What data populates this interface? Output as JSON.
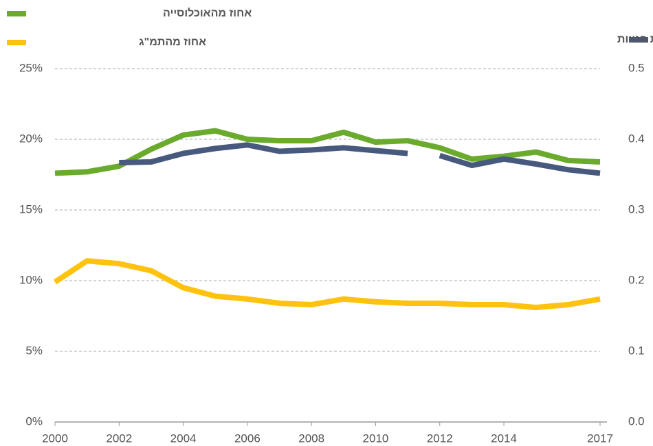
{
  "chart_data": {
    "type": "line",
    "x": [
      2000,
      2001,
      2002,
      2003,
      2004,
      2005,
      2006,
      2007,
      2008,
      2009,
      2010,
      2011,
      2012,
      2013,
      2014,
      2015,
      2016,
      2017
    ],
    "xlim": [
      2000,
      2017
    ],
    "xticks": [
      2000,
      2002,
      2004,
      2006,
      2008,
      2010,
      2012,
      2014,
      2017
    ],
    "ylim": [
      0,
      25
    ],
    "yticks": [
      {
        "value": 0,
        "label": "0%"
      },
      {
        "value": 5,
        "label": "5%"
      },
      {
        "value": 10,
        "label": "10%"
      },
      {
        "value": 15,
        "label": "15%"
      },
      {
        "value": 20,
        "label": "20%"
      },
      {
        "value": 25,
        "label": "25%"
      }
    ],
    "y2lim": [
      0,
      0.5
    ],
    "y2ticks": [
      {
        "value": 0,
        "label": "0.0"
      },
      0.1,
      0.2,
      0.3,
      0.4,
      0.5
    ],
    "grid": true,
    "series": [
      {
        "name": "אחוז מהאוכלוסייה",
        "color": "#6aab2e",
        "values": [
          17.6,
          17.7,
          18.1,
          19.3,
          20.3,
          20.6,
          20.0,
          19.9,
          19.9,
          20.5,
          19.8,
          19.9,
          19.4,
          18.6,
          18.8,
          19.1,
          18.5,
          18.4
        ]
      },
      {
        "name": "אחוז מהתמ\"ג",
        "color": "#ffc20e",
        "values": [
          9.9,
          11.4,
          11.2,
          10.7,
          9.5,
          8.9,
          8.7,
          8.4,
          8.3,
          8.7,
          8.5,
          8.4,
          8.4,
          8.3,
          8.3,
          8.1,
          8.3,
          8.7
        ]
      },
      {
        "name": "מדד ג'יני לאי שוויון בהכנסות  פנויות",
        "color": "#475a7d",
        "axis": "y2",
        "values": [
          null,
          null,
          0.367,
          0.368,
          0.38,
          0.387,
          0.392,
          0.383,
          0.385,
          0.388,
          0.384,
          0.38,
          null,
          null,
          null,
          null,
          null,
          null
        ]
      },
      {
        "color": "#475a7d",
        "axis": "y2",
        "values": [
          null,
          null,
          null,
          null,
          null,
          null,
          null,
          null,
          null,
          null,
          null,
          null,
          0.377,
          0.363,
          0.372,
          0.365,
          0.357,
          0.352
        ]
      }
    ]
  }
}
